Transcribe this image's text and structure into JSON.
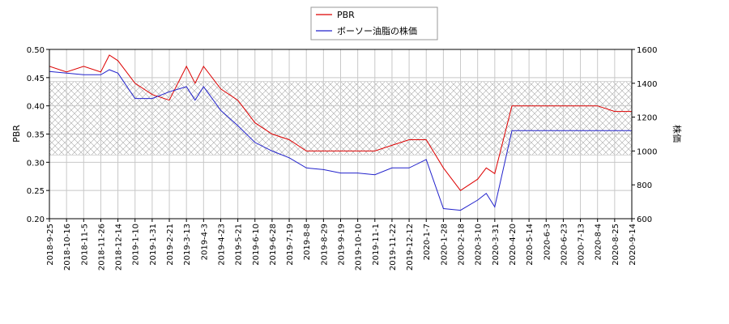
{
  "chart_data": {
    "type": "line",
    "grid": true,
    "legend_position": "top-center",
    "left_axis": {
      "label": "PBR",
      "ylim": [
        0.2,
        0.5
      ],
      "ticks": [
        "0.20",
        "0.25",
        "0.30",
        "0.35",
        "0.40",
        "0.45",
        "0.50"
      ]
    },
    "right_axis": {
      "label": "株価",
      "ylim": [
        600,
        1600
      ],
      "ticks": [
        "600",
        "800",
        "1000",
        "1200",
        "1400",
        "1600"
      ]
    },
    "x_tick_labels": [
      "2018-9-25",
      "2018-10-16",
      "2018-11-5",
      "2018-11-26",
      "2018-12-14",
      "2019-1-10",
      "2019-1-31",
      "2019-2-21",
      "2019-3-13",
      "2019-4-3",
      "2019-4-23",
      "2019-5-21",
      "2019-6-10",
      "2019-6-28",
      "2019-7-19",
      "2019-8-8",
      "2019-8-29",
      "2019-9-19",
      "2019-10-10",
      "2019-11-1",
      "2019-11-22",
      "2019-12-12",
      "2020-1-7",
      "2020-1-28",
      "2020-2-18",
      "2020-3-10",
      "2020-3-31",
      "2020-4-20",
      "2020-5-14",
      "2020-6-3",
      "2020-6-23",
      "2020-7-13",
      "2020-8-4",
      "2020-8-25",
      "2020-9-14"
    ],
    "band": {
      "axis": "left",
      "range": [
        0.313,
        0.443
      ],
      "pattern": "crosshatch"
    },
    "series": [
      {
        "name": "PBR",
        "axis": "left",
        "color": "#dd0000",
        "x": [
          0,
          1,
          2,
          3,
          3.5,
          4,
          5,
          6,
          7,
          8,
          8.5,
          9,
          10,
          11,
          12,
          13,
          14,
          15,
          16,
          17,
          18,
          19,
          20,
          21,
          22,
          23,
          24,
          25,
          25.5,
          26,
          27,
          28,
          28.2,
          29,
          30,
          31,
          32,
          33,
          34
        ],
        "y": [
          0.47,
          0.46,
          0.47,
          0.46,
          0.49,
          0.48,
          0.44,
          0.42,
          0.41,
          0.47,
          0.44,
          0.47,
          0.43,
          0.41,
          0.37,
          0.35,
          0.34,
          0.32,
          0.32,
          0.32,
          0.32,
          0.32,
          0.33,
          0.34,
          0.34,
          0.29,
          0.25,
          0.27,
          0.29,
          0.28,
          0.4,
          0.4,
          0.4,
          0.4,
          0.4,
          0.4,
          0.4,
          0.39,
          0.39
        ]
      },
      {
        "name": "ボーソー油脂の株価",
        "axis": "right",
        "color": "#2222cc",
        "x": [
          0,
          1,
          2,
          3,
          3.5,
          4,
          5,
          6,
          7,
          8,
          8.5,
          9,
          10,
          11,
          12,
          13,
          14,
          15,
          16,
          17,
          18,
          19,
          20,
          21,
          22,
          23,
          24,
          25,
          25.5,
          26,
          27,
          28,
          28.2,
          29,
          30,
          31,
          32,
          33,
          34
        ],
        "y": [
          1470,
          1460,
          1450,
          1450,
          1480,
          1460,
          1310,
          1310,
          1350,
          1380,
          1300,
          1380,
          1240,
          1150,
          1050,
          1000,
          960,
          900,
          890,
          870,
          870,
          860,
          900,
          900,
          950,
          660,
          650,
          710,
          750,
          670,
          1120,
          1120,
          1120,
          1120,
          1120,
          1120,
          1120,
          1120,
          1120
        ]
      }
    ]
  }
}
